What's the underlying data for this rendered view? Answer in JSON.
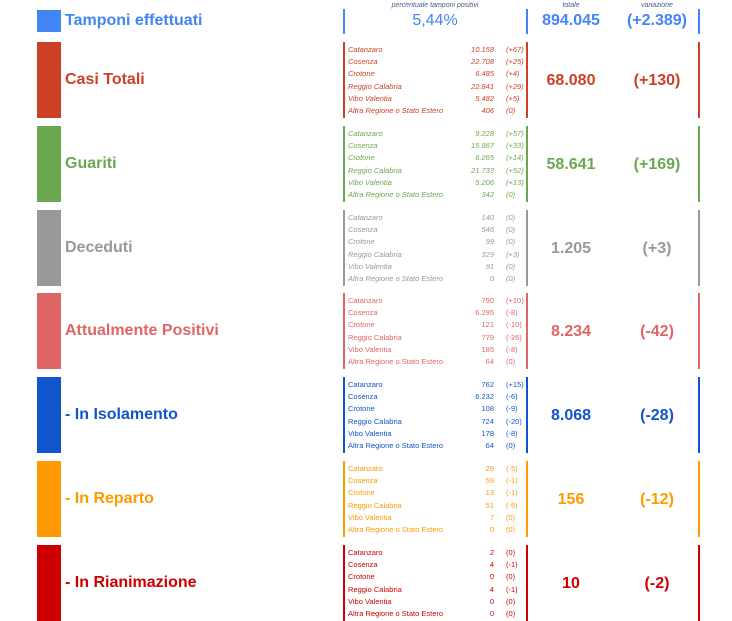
{
  "header": {
    "pct_label": "percentuale tamponi positivi",
    "total_label": "totale",
    "var_label": "variazione"
  },
  "tamponi": {
    "title": "Tamponi effettuati",
    "pct": "5,44%",
    "total": "894.045",
    "variation": "(+2.389)",
    "color": "#4285f4"
  },
  "sections": [
    {
      "title": "Casi Totali",
      "color": "#cc4125",
      "total": "68.080",
      "variation": "(+130)",
      "italic": true,
      "rows": [
        {
          "name": "Catanzaro",
          "value": "10.158",
          "delta": "(+67)"
        },
        {
          "name": "Cosenza",
          "value": "22.708",
          "delta": "(+25)"
        },
        {
          "name": "Crotone",
          "value": "6.485",
          "delta": "(+4)"
        },
        {
          "name": "Reggio Calabria",
          "value": "22.841",
          "delta": "(+29)"
        },
        {
          "name": "Vibo Valentia",
          "value": "5.482",
          "delta": "(+5)"
        },
        {
          "name": "Altra Regione o Stato Estero",
          "value": "406",
          "delta": "(0)"
        }
      ]
    },
    {
      "title": "Guariti",
      "color": "#6aa84f",
      "total": "58.641",
      "variation": "(+169)",
      "italic": true,
      "rows": [
        {
          "name": "Catanzaro",
          "value": "9.228",
          "delta": "(+57)"
        },
        {
          "name": "Cosenza",
          "value": "15.867",
          "delta": "(+33)"
        },
        {
          "name": "Crotone",
          "value": "6.265",
          "delta": "(+14)"
        },
        {
          "name": "Reggio Calabria",
          "value": "21.733",
          "delta": "(+52)"
        },
        {
          "name": "Vibo Valentia",
          "value": "5.206",
          "delta": "(+13)"
        },
        {
          "name": "Altra Regione o Stato Estero",
          "value": "342",
          "delta": "(0)"
        }
      ]
    },
    {
      "title": "Deceduti",
      "color": "#999999",
      "total": "1.205",
      "variation": "(+3)",
      "italic": true,
      "rows": [
        {
          "name": "Catanzaro",
          "value": "140",
          "delta": "(0)"
        },
        {
          "name": "Cosenza",
          "value": "546",
          "delta": "(0)"
        },
        {
          "name": "Crotone",
          "value": "99",
          "delta": "(0)"
        },
        {
          "name": "Reggio Calabria",
          "value": "329",
          "delta": "(+3)"
        },
        {
          "name": "Vibo Valentia",
          "value": "91",
          "delta": "(0)"
        },
        {
          "name": "Altra Regione o Stato Estero",
          "value": "0",
          "delta": "(0)"
        }
      ]
    },
    {
      "title": "Attualmente Positivi",
      "color": "#e06666",
      "total": "8.234",
      "variation": "(-42)",
      "italic": false,
      "rows": [
        {
          "name": "Catanzaro",
          "value": "790",
          "delta": "(+10)"
        },
        {
          "name": "Cosenza",
          "value": "6.295",
          "delta": "(-8)"
        },
        {
          "name": "Crotone",
          "value": "121",
          "delta": "(-10)"
        },
        {
          "name": "Reggio Calabria",
          "value": "779",
          "delta": "(-26)"
        },
        {
          "name": "Vibo Valentia",
          "value": "185",
          "delta": "(-8)"
        },
        {
          "name": "Altra Regione o Stato Estero",
          "value": "64",
          "delta": "(0)"
        }
      ]
    },
    {
      "title": " - In Isolamento",
      "color": "#1155cc",
      "total": "8.068",
      "variation": "(-28)",
      "italic": false,
      "rows": [
        {
          "name": "Catanzaro",
          "value": "762",
          "delta": "(+15)"
        },
        {
          "name": "Cosenza",
          "value": "6.232",
          "delta": "(-6)"
        },
        {
          "name": "Crotone",
          "value": "108",
          "delta": "(-9)"
        },
        {
          "name": "Reggio Calabria",
          "value": "724",
          "delta": "(-20)"
        },
        {
          "name": "Vibo Valentia",
          "value": "178",
          "delta": "(-8)"
        },
        {
          "name": "Altra Regione o Stato Estero",
          "value": "64",
          "delta": "(0)"
        }
      ]
    },
    {
      "title": " - In Reparto",
      "color": "#ff9900",
      "total": "156",
      "variation": "(-12)",
      "italic": false,
      "rows": [
        {
          "name": "Catanzaro",
          "value": "26",
          "delta": "(-5)"
        },
        {
          "name": "Cosenza",
          "value": "59",
          "delta": "(-1)"
        },
        {
          "name": "Crotone",
          "value": "13",
          "delta": "(-1)"
        },
        {
          "name": "Reggio Calabria",
          "value": "51",
          "delta": "(-5)"
        },
        {
          "name": "Vibo Valentia",
          "value": "7",
          "delta": "(0)"
        },
        {
          "name": "Altra Regione o Stato Estero",
          "value": "0",
          "delta": "(0)"
        }
      ]
    },
    {
      "title": " - In Rianimazione",
      "color": "#cc0000",
      "total": "10",
      "variation": "(-2)",
      "italic": false,
      "rows": [
        {
          "name": "Catanzaro",
          "value": "2",
          "delta": "(0)"
        },
        {
          "name": "Cosenza",
          "value": "4",
          "delta": "(-1)"
        },
        {
          "name": "Crotone",
          "value": "0",
          "delta": "(0)"
        },
        {
          "name": "Reggio Calabria",
          "value": "4",
          "delta": "(-1)"
        },
        {
          "name": "Vibo Valentia",
          "value": "0",
          "delta": "(0)"
        },
        {
          "name": "Altra Regione o Stato Estero",
          "value": "0",
          "delta": "(0)"
        }
      ]
    }
  ]
}
